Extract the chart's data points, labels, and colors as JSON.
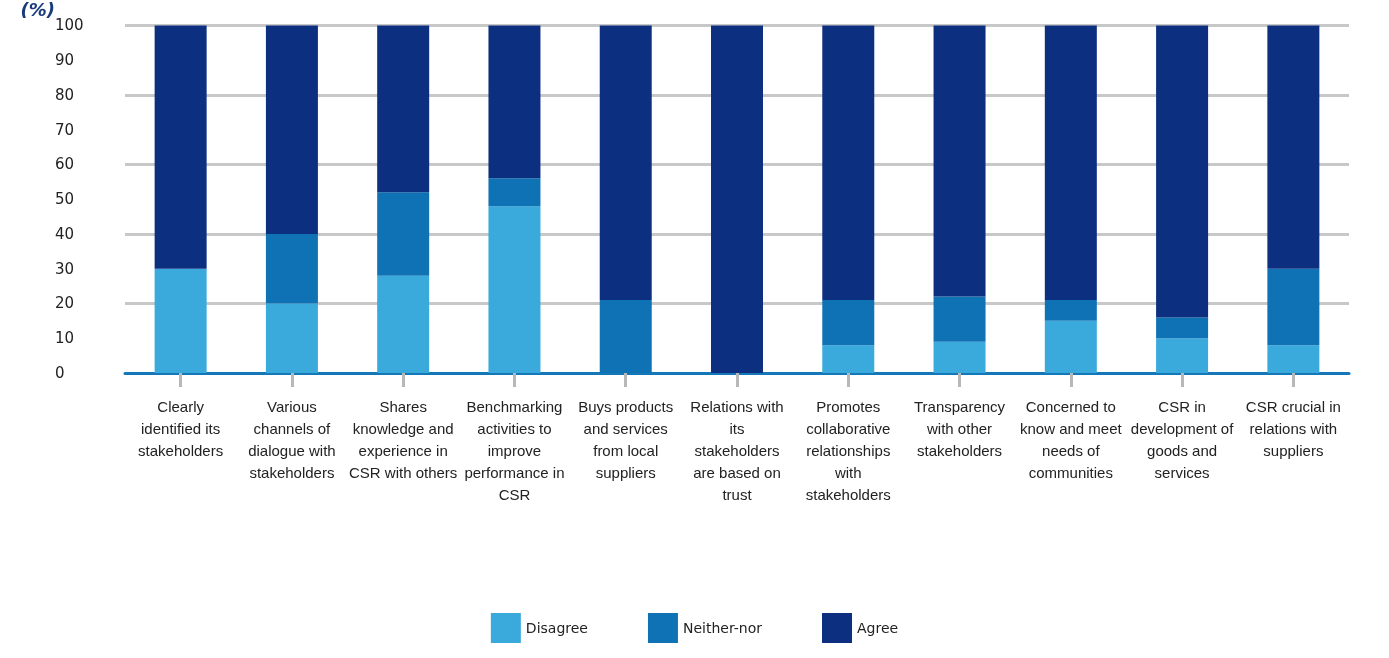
{
  "chart_data": {
    "type": "bar",
    "stacked": true,
    "ylabel": "(%)",
    "categories": [
      "Clearly identified its stakeholders",
      "Various channels of dialogue with stakeholders",
      "Shares knowledge and experience in CSR with others",
      "Benchmarking activities to improve performance in CSR",
      "Buys products and services from local suppliers",
      "Relations with its stakeholders are based on trust",
      "Promotes collaborative relationships with stakeholders",
      "Transparency with other stakeholders",
      "Concerned to know and meet needs of communities",
      "CSR in development of goods and services",
      "CSR crucial in relations with suppliers"
    ],
    "series": [
      {
        "name": "Disagree",
        "color": "#3aa9dc",
        "values": [
          30,
          20,
          28,
          48,
          0,
          0,
          8,
          9,
          15,
          10,
          8
        ]
      },
      {
        "name": "Neither-nor",
        "color": "#0e72b5",
        "values": [
          0,
          20,
          24,
          8,
          21,
          0,
          13,
          13,
          6,
          6,
          22
        ]
      },
      {
        "name": "Agree",
        "color": "#0d2f80",
        "values": [
          70,
          60,
          48,
          44,
          79,
          100,
          79,
          78,
          79,
          84,
          70
        ]
      }
    ],
    "ylim": [
      0,
      100
    ],
    "yticks": [
      0,
      10,
      20,
      30,
      40,
      50,
      60,
      70,
      80,
      90,
      100
    ],
    "grid": "y",
    "legend": "bottom"
  }
}
